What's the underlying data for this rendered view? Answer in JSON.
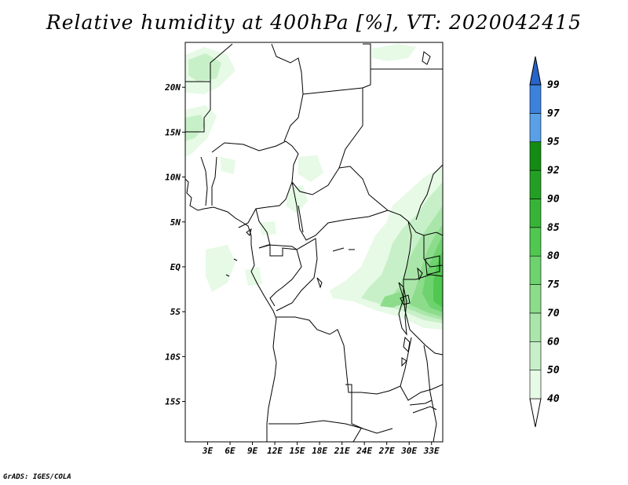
{
  "title": "Relative humidity at 400hPa [%], VT: 2020042415",
  "footer": "GrADS: IGES/COLA",
  "map": {
    "lat_labels": [
      "20N",
      "15N",
      "10N",
      "5N",
      "EQ",
      "5S",
      "10S",
      "15S"
    ],
    "lat_values": [
      20,
      15,
      10,
      5,
      0,
      -5,
      -10,
      -15
    ],
    "lon_labels": [
      "3E",
      "6E",
      "9E",
      "12E",
      "15E",
      "18E",
      "21E",
      "24E",
      "27E",
      "30E",
      "33E"
    ],
    "lon_values": [
      3,
      6,
      9,
      12,
      15,
      18,
      21,
      24,
      27,
      30,
      33
    ],
    "lon_range": [
      0,
      34.5
    ],
    "lat_range": [
      -19.5,
      25
    ]
  },
  "colorbar": {
    "labels": [
      "40",
      "50",
      "60",
      "70",
      "75",
      "80",
      "85",
      "90",
      "92",
      "95",
      "97",
      "99"
    ],
    "colors": [
      "#ffffff",
      "#e6fae6",
      "#c8f0c8",
      "#aae6aa",
      "#8cdc8c",
      "#6ed26e",
      "#50c850",
      "#37b437",
      "#23a023",
      "#148c14",
      "#5aa0e6",
      "#3c82dc",
      "#2864c8"
    ]
  }
}
